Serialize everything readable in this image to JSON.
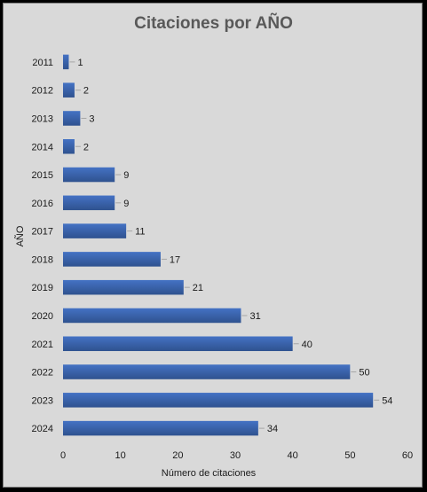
{
  "chart_data": {
    "type": "bar",
    "orientation": "horizontal",
    "title": "Citaciones por AÑO",
    "xlabel": "Número de citaciones",
    "ylabel": "AÑO",
    "categories": [
      "2011",
      "2012",
      "2013",
      "2014",
      "2015",
      "2016",
      "2017",
      "2018",
      "2019",
      "2020",
      "2021",
      "2022",
      "2023",
      "2024"
    ],
    "values": [
      1,
      2,
      3,
      2,
      9,
      9,
      11,
      17,
      21,
      31,
      40,
      50,
      54,
      34
    ],
    "xlim": [
      0,
      60
    ],
    "xticks": [
      0,
      10,
      20,
      30,
      40,
      50,
      60
    ],
    "grid": false,
    "legend": "none",
    "colors": {
      "bar": "#4472c4",
      "bar_dark": "#2f528f",
      "background": "#d9d9d9"
    }
  }
}
